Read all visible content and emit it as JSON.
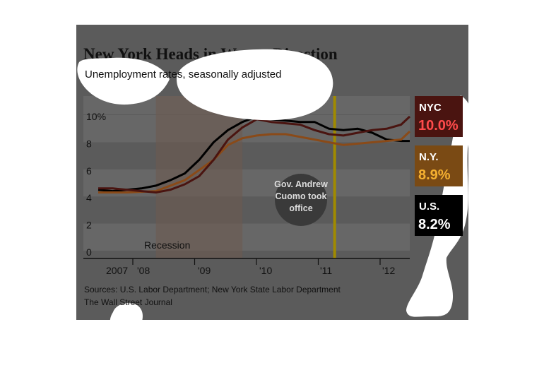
{
  "chart_data": {
    "type": "line",
    "title": "New York Heads in Wrong Direction",
    "subtitle": "Unemployment rates, seasonally adjusted",
    "y_ticks": [
      "10%",
      "8",
      "6",
      "4",
      "2",
      "0"
    ],
    "x_ticks": [
      "2007",
      "'08",
      "'09",
      "'10",
      "'11",
      "'12"
    ],
    "ylim": [
      0,
      10.5
    ],
    "xlim": [
      2007.0,
      2012.4
    ],
    "grid": "horizontal bands",
    "recession": {
      "label": "Recession",
      "start": 2008.0,
      "end": 2009.5
    },
    "event": {
      "label_lines": [
        "Gov. Andrew",
        "Cuomo took",
        "office"
      ],
      "x": 2011.0
    },
    "series": [
      {
        "name": "NYC",
        "latest": "10.0%",
        "color": "#4a1410",
        "box_color": "#4a1410",
        "value_color": "#ff4b4b",
        "points": [
          [
            2007.0,
            4.7
          ],
          [
            2007.25,
            4.7
          ],
          [
            2007.5,
            4.6
          ],
          [
            2007.75,
            4.5
          ],
          [
            2008.0,
            4.4
          ],
          [
            2008.25,
            4.6
          ],
          [
            2008.5,
            5.0
          ],
          [
            2008.75,
            5.6
          ],
          [
            2009.0,
            6.8
          ],
          [
            2009.25,
            8.3
          ],
          [
            2009.5,
            9.2
          ],
          [
            2009.75,
            9.8
          ],
          [
            2010.0,
            9.6
          ],
          [
            2010.25,
            9.5
          ],
          [
            2010.5,
            9.4
          ],
          [
            2010.75,
            9.0
          ],
          [
            2011.0,
            8.7
          ],
          [
            2011.25,
            8.6
          ],
          [
            2011.5,
            8.8
          ],
          [
            2011.75,
            9.0
          ],
          [
            2012.0,
            9.1
          ],
          [
            2012.25,
            9.4
          ],
          [
            2012.4,
            10.0
          ]
        ]
      },
      {
        "name": "N.Y.",
        "latest": "8.9%",
        "color": "#8a4a18",
        "box_color": "#7a4a14",
        "value_color": "#f5b030",
        "points": [
          [
            2007.0,
            4.4
          ],
          [
            2007.5,
            4.4
          ],
          [
            2008.0,
            4.5
          ],
          [
            2008.5,
            5.3
          ],
          [
            2009.0,
            6.8
          ],
          [
            2009.25,
            7.9
          ],
          [
            2009.5,
            8.4
          ],
          [
            2009.75,
            8.6
          ],
          [
            2010.0,
            8.7
          ],
          [
            2010.25,
            8.7
          ],
          [
            2010.5,
            8.5
          ],
          [
            2010.75,
            8.3
          ],
          [
            2011.0,
            8.1
          ],
          [
            2011.25,
            7.9
          ],
          [
            2011.5,
            8.0
          ],
          [
            2011.75,
            8.1
          ],
          [
            2012.0,
            8.2
          ],
          [
            2012.25,
            8.3
          ],
          [
            2012.4,
            8.9
          ]
        ]
      },
      {
        "name": "U.S.",
        "latest": "8.2%",
        "color": "#000000",
        "box_color": "#000000",
        "value_color": "#ffffff",
        "points": [
          [
            2007.0,
            4.6
          ],
          [
            2007.25,
            4.5
          ],
          [
            2007.5,
            4.6
          ],
          [
            2007.75,
            4.7
          ],
          [
            2008.0,
            4.9
          ],
          [
            2008.25,
            5.3
          ],
          [
            2008.5,
            5.8
          ],
          [
            2008.75,
            6.8
          ],
          [
            2009.0,
            8.1
          ],
          [
            2009.25,
            9.0
          ],
          [
            2009.5,
            9.6
          ],
          [
            2009.75,
            10.0
          ],
          [
            2010.0,
            9.8
          ],
          [
            2010.25,
            9.7
          ],
          [
            2010.5,
            9.6
          ],
          [
            2010.75,
            9.6
          ],
          [
            2011.0,
            9.1
          ],
          [
            2011.25,
            9.0
          ],
          [
            2011.5,
            9.1
          ],
          [
            2011.75,
            8.8
          ],
          [
            2012.0,
            8.3
          ],
          [
            2012.25,
            8.2
          ],
          [
            2012.4,
            8.2
          ]
        ]
      }
    ],
    "source_lines": [
      "Sources: U.S. Labor Department; New York State Labor Department",
      "The Wall Street Journal"
    ]
  }
}
